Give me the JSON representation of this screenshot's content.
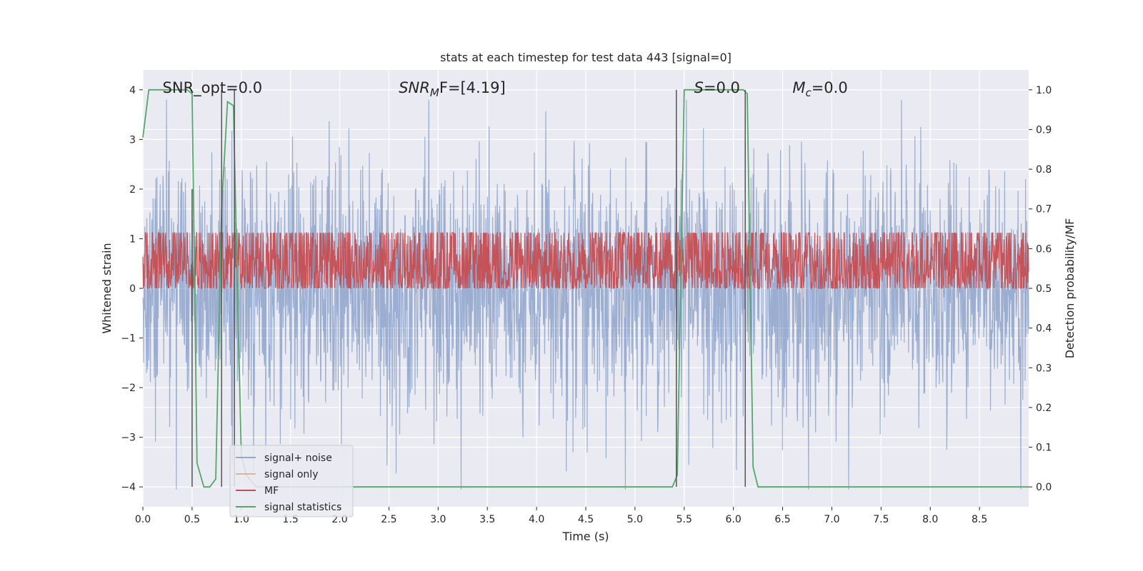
{
  "chart_data": {
    "type": "line",
    "title": "stats at each timestep for test data 443 [signal=0]",
    "xlabel": "Time (s)",
    "ylabel": "Whitened strain",
    "y2label": "Detection probability/MF",
    "xlim": [
      0.0,
      9.0
    ],
    "ylim": [
      -4.4,
      4.4
    ],
    "y2lim": [
      -0.05,
      1.05
    ],
    "x_ticks": [
      0.0,
      0.5,
      1.0,
      1.5,
      2.0,
      2.5,
      3.0,
      3.5,
      4.0,
      4.5,
      5.0,
      5.5,
      6.0,
      6.5,
      7.0,
      7.5,
      8.0,
      8.5
    ],
    "y_ticks": [
      -4,
      -3,
      -2,
      -1,
      0,
      1,
      2,
      3,
      4
    ],
    "y2_ticks": [
      0.0,
      0.1,
      0.2,
      0.3,
      0.4,
      0.5,
      0.6,
      0.7,
      0.8,
      0.9,
      1.0
    ],
    "grid": true,
    "legend_position": "lower-left",
    "series": [
      {
        "name": "signal+ noise",
        "color": "#4c72b0",
        "axis": "left",
        "kind": "noise",
        "samples": 2250,
        "amplitude": 1.25,
        "x_range": [
          0.0,
          9.0
        ]
      },
      {
        "name": "signal only",
        "color": "#dd8452",
        "axis": "left",
        "values": []
      },
      {
        "name": "MF",
        "color": "#c44e52",
        "axis": "right",
        "kind": "noise",
        "samples": 2250,
        "baseline": 0.55,
        "amplitude": 0.09,
        "x_range": [
          0.0,
          9.0
        ]
      },
      {
        "name": "signal statistics",
        "color": "#55a868",
        "axis": "right",
        "x": [
          0.0,
          0.06,
          0.45,
          0.5,
          0.55,
          0.62,
          0.68,
          0.74,
          0.8,
          0.86,
          0.92,
          0.96,
          1.0,
          1.05,
          1.15,
          1.3,
          4.8,
          5.38,
          5.43,
          5.5,
          6.1,
          6.14,
          6.2,
          6.25,
          9.0
        ],
        "values": [
          0.88,
          1.0,
          1.0,
          0.99,
          0.06,
          0.0,
          0.0,
          0.02,
          0.7,
          0.97,
          0.96,
          0.5,
          0.08,
          0.03,
          0.0,
          0.0,
          0.0,
          0.0,
          0.03,
          1.0,
          1.0,
          0.99,
          0.05,
          0.0,
          0.0
        ]
      }
    ],
    "vertical_lines": [
      {
        "x": 0.5,
        "y_range": [
          -4.0,
          2.0
        ]
      },
      {
        "x": 0.8,
        "y_range": [
          -4.0,
          4.0
        ]
      },
      {
        "x": 0.93,
        "y_range": [
          -4.0,
          4.0
        ]
      },
      {
        "x": 5.42,
        "y_range": [
          -4.0,
          4.0
        ]
      },
      {
        "x": 6.12,
        "y_range": [
          -4.0,
          4.0
        ]
      }
    ],
    "annotations": [
      {
        "text": "SNR_opt=0.0",
        "x": 0.2,
        "y": 4.0
      },
      {
        "text": "SNR",
        "sub": "M",
        "rest": "F=[4.19]",
        "italic": true,
        "x": 2.6,
        "y": 4.0
      },
      {
        "text": "S",
        "rest": "=0.0",
        "italic": true,
        "x": 5.6,
        "y": 4.0
      },
      {
        "text": "M",
        "sub": "c",
        "rest": "=0.0",
        "italic": true,
        "x": 6.6,
        "y": 4.0
      }
    ],
    "legend": [
      "signal+ noise",
      "signal only",
      "MF",
      "signal statistics"
    ]
  },
  "colors": {
    "plot_background": "#eaeaf2",
    "grid": "#ffffff",
    "vline": "#555555"
  }
}
